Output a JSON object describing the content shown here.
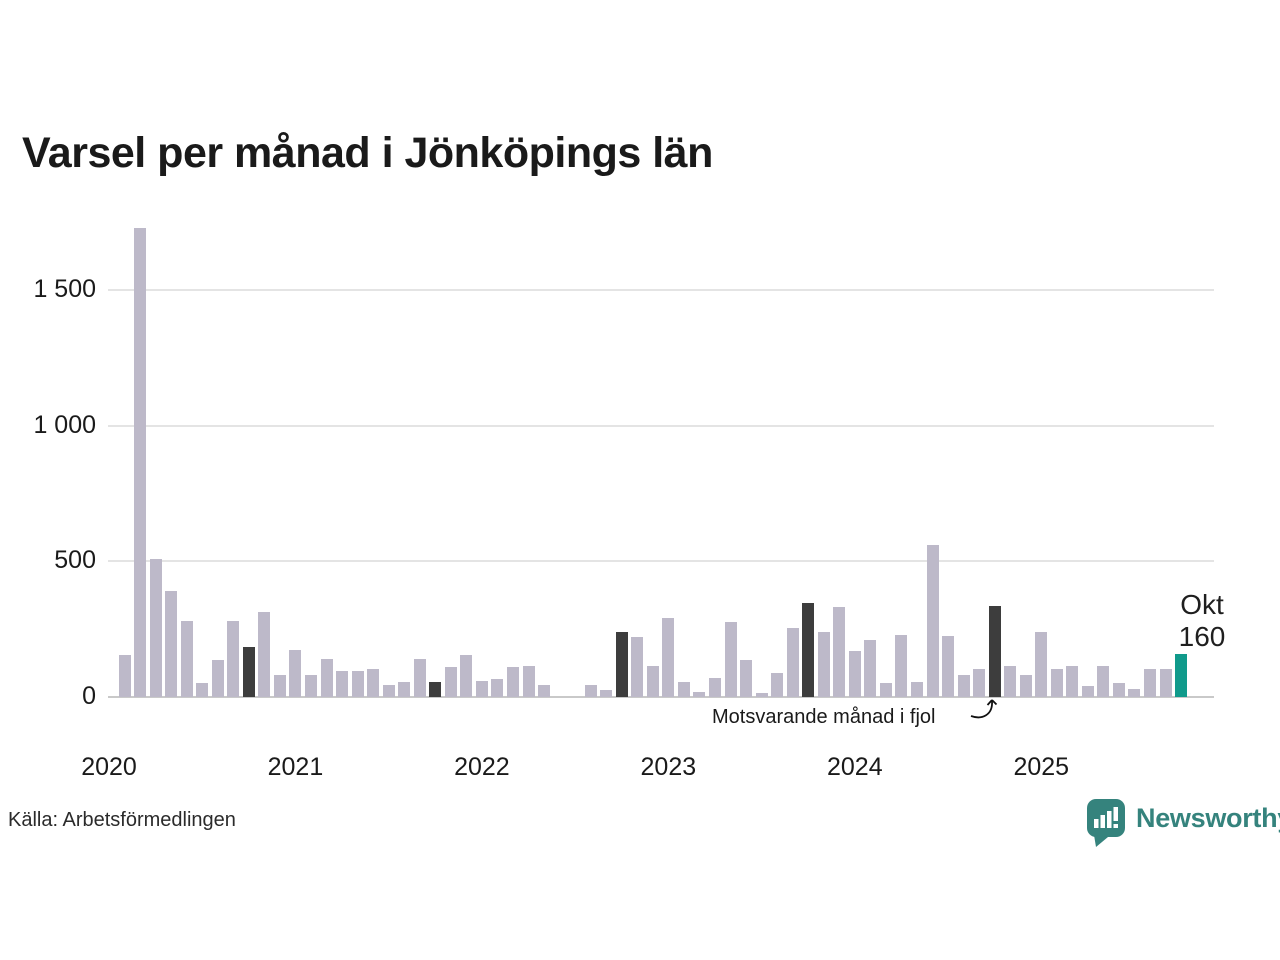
{
  "title": "Varsel per månad i Jönköpings län",
  "source": "Källa: Arbetsförmedlingen",
  "annotation": {
    "text": "Motsvarande månad i fjol"
  },
  "current_label": {
    "month": "Okt",
    "value": "160"
  },
  "logo": {
    "text": "Newsworthy"
  },
  "colors": {
    "bar_normal": "#bdb9c9",
    "bar_fjol": "#3d3d3d",
    "bar_current": "#109a8b",
    "logo_teal": "#35837d",
    "text": "#1a1a1a"
  },
  "chart_data": {
    "type": "bar",
    "title": "Varsel per månad i Jönköpings län",
    "xlabel": "",
    "ylabel": "",
    "ylim": [
      0,
      1750
    ],
    "grid": true,
    "y_ticks": [
      0,
      500,
      1000,
      1500
    ],
    "y_tick_labels": [
      "0",
      "500",
      "1 000",
      "1 500"
    ],
    "x_tick_labels": [
      "2020",
      "2021",
      "2022",
      "2023",
      "2024",
      "2025"
    ],
    "legend": {
      "fjol_meaning": "Motsvarande månad i fjol",
      "current_meaning": "Okt 160"
    },
    "bars": [
      {
        "month": "Feb 2020",
        "value": 155,
        "type": "normal"
      },
      {
        "month": "Mar 2020",
        "value": 1730,
        "type": "normal"
      },
      {
        "month": "Apr 2020",
        "value": 510,
        "type": "normal"
      },
      {
        "month": "Maj 2020",
        "value": 390,
        "type": "normal"
      },
      {
        "month": "Jun 2020",
        "value": 280,
        "type": "normal"
      },
      {
        "month": "Jul 2020",
        "value": 50,
        "type": "normal"
      },
      {
        "month": "Aug 2020",
        "value": 135,
        "type": "normal"
      },
      {
        "month": "Sep 2020",
        "value": 280,
        "type": "normal"
      },
      {
        "month": "Okt 2020",
        "value": 185,
        "type": "fjol"
      },
      {
        "month": "Nov 2020",
        "value": 315,
        "type": "normal"
      },
      {
        "month": "Dec 2020",
        "value": 80,
        "type": "normal"
      },
      {
        "month": "Jan 2021",
        "value": 175,
        "type": "normal"
      },
      {
        "month": "Feb 2021",
        "value": 80,
        "type": "normal"
      },
      {
        "month": "Mar 2021",
        "value": 140,
        "type": "normal"
      },
      {
        "month": "Apr 2021",
        "value": 95,
        "type": "normal"
      },
      {
        "month": "Maj 2021",
        "value": 95,
        "type": "normal"
      },
      {
        "month": "Jun 2021",
        "value": 105,
        "type": "normal"
      },
      {
        "month": "Jul 2021",
        "value": 45,
        "type": "normal"
      },
      {
        "month": "Aug 2021",
        "value": 55,
        "type": "normal"
      },
      {
        "month": "Sep 2021",
        "value": 140,
        "type": "normal"
      },
      {
        "month": "Okt 2021",
        "value": 55,
        "type": "fjol"
      },
      {
        "month": "Nov 2021",
        "value": 110,
        "type": "normal"
      },
      {
        "month": "Dec 2021",
        "value": 155,
        "type": "normal"
      },
      {
        "month": "Jan 2022",
        "value": 60,
        "type": "normal"
      },
      {
        "month": "Feb 2022",
        "value": 65,
        "type": "normal"
      },
      {
        "month": "Mar 2022",
        "value": 110,
        "type": "normal"
      },
      {
        "month": "Apr 2022",
        "value": 115,
        "type": "normal"
      },
      {
        "month": "Maj 2022",
        "value": 45,
        "type": "normal"
      },
      {
        "month": "Jun 2022",
        "value": 0,
        "type": "normal"
      },
      {
        "month": "Jul 2022",
        "value": 0,
        "type": "normal"
      },
      {
        "month": "Aug 2022",
        "value": 45,
        "type": "normal"
      },
      {
        "month": "Sep 2022",
        "value": 25,
        "type": "normal"
      },
      {
        "month": "Okt 2022",
        "value": 240,
        "type": "fjol"
      },
      {
        "month": "Nov 2022",
        "value": 220,
        "type": "normal"
      },
      {
        "month": "Dec 2022",
        "value": 115,
        "type": "normal"
      },
      {
        "month": "Jan 2023",
        "value": 290,
        "type": "normal"
      },
      {
        "month": "Feb 2023",
        "value": 55,
        "type": "normal"
      },
      {
        "month": "Mar 2023",
        "value": 20,
        "type": "normal"
      },
      {
        "month": "Apr 2023",
        "value": 70,
        "type": "normal"
      },
      {
        "month": "Maj 2023",
        "value": 275,
        "type": "normal"
      },
      {
        "month": "Jun 2023",
        "value": 135,
        "type": "normal"
      },
      {
        "month": "Jul 2023",
        "value": 15,
        "type": "normal"
      },
      {
        "month": "Aug 2023",
        "value": 90,
        "type": "normal"
      },
      {
        "month": "Sep 2023",
        "value": 255,
        "type": "normal"
      },
      {
        "month": "Okt 2023",
        "value": 345,
        "type": "fjol"
      },
      {
        "month": "Nov 2023",
        "value": 240,
        "type": "normal"
      },
      {
        "month": "Dec 2023",
        "value": 330,
        "type": "normal"
      },
      {
        "month": "Jan 2024",
        "value": 170,
        "type": "normal"
      },
      {
        "month": "Feb 2024",
        "value": 210,
        "type": "normal"
      },
      {
        "month": "Mar 2024",
        "value": 50,
        "type": "normal"
      },
      {
        "month": "Apr 2024",
        "value": 230,
        "type": "normal"
      },
      {
        "month": "Maj 2024",
        "value": 55,
        "type": "normal"
      },
      {
        "month": "Jun 2024",
        "value": 560,
        "type": "normal"
      },
      {
        "month": "Jul 2024",
        "value": 225,
        "type": "normal"
      },
      {
        "month": "Aug 2024",
        "value": 80,
        "type": "normal"
      },
      {
        "month": "Sep 2024",
        "value": 105,
        "type": "normal"
      },
      {
        "month": "Okt 2024",
        "value": 335,
        "type": "fjol"
      },
      {
        "month": "Nov 2024",
        "value": 115,
        "type": "normal"
      },
      {
        "month": "Dec 2024",
        "value": 80,
        "type": "normal"
      },
      {
        "month": "Jan 2025",
        "value": 240,
        "type": "normal"
      },
      {
        "month": "Feb 2025",
        "value": 105,
        "type": "normal"
      },
      {
        "month": "Mar 2025",
        "value": 115,
        "type": "normal"
      },
      {
        "month": "Apr 2025",
        "value": 40,
        "type": "normal"
      },
      {
        "month": "Maj 2025",
        "value": 115,
        "type": "normal"
      },
      {
        "month": "Jun 2025",
        "value": 50,
        "type": "normal"
      },
      {
        "month": "Jul 2025",
        "value": 30,
        "type": "normal"
      },
      {
        "month": "Aug 2025",
        "value": 105,
        "type": "normal"
      },
      {
        "month": "Sep 2025",
        "value": 105,
        "type": "normal"
      },
      {
        "month": "Okt 2025",
        "value": 160,
        "type": "current"
      }
    ]
  }
}
